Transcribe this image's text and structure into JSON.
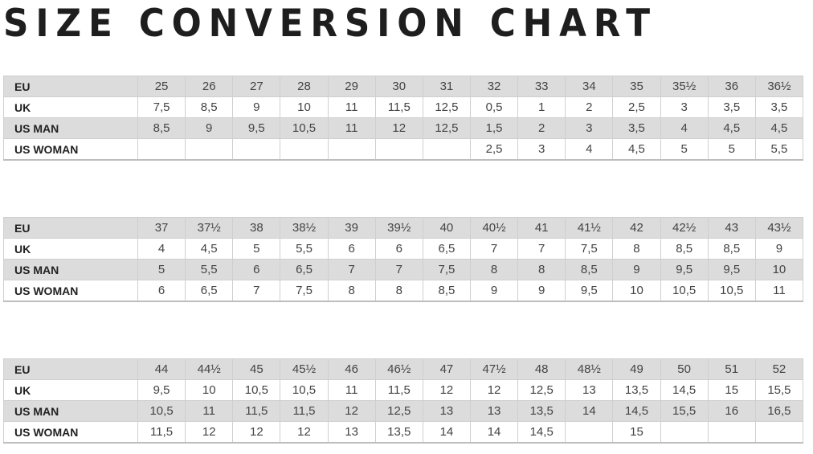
{
  "title": "SIZE CONVERSION CHART",
  "row_labels": [
    "EU",
    "UK",
    "US MAN",
    "US WOMAN"
  ],
  "tables": [
    {
      "EU": [
        "25",
        "26",
        "27",
        "28",
        "29",
        "30",
        "31",
        "32",
        "33",
        "34",
        "35",
        "35½",
        "36",
        "36½"
      ],
      "UK": [
        "7,5",
        "8,5",
        "9",
        "10",
        "11",
        "11,5",
        "12,5",
        "0,5",
        "1",
        "2",
        "2,5",
        "3",
        "3,5",
        "3,5"
      ],
      "US MAN": [
        "8,5",
        "9",
        "9,5",
        "10,5",
        "11",
        "12",
        "12,5",
        "1,5",
        "2",
        "3",
        "3,5",
        "4",
        "4,5",
        "4,5"
      ],
      "US WOMAN": [
        "",
        "",
        "",
        "",
        "",
        "",
        "",
        "2,5",
        "3",
        "4",
        "4,5",
        "5",
        "5",
        "5,5"
      ]
    },
    {
      "EU": [
        "37",
        "37½",
        "38",
        "38½",
        "39",
        "39½",
        "40",
        "40½",
        "41",
        "41½",
        "42",
        "42½",
        "43",
        "43½"
      ],
      "UK": [
        "4",
        "4,5",
        "5",
        "5,5",
        "6",
        "6",
        "6,5",
        "7",
        "7",
        "7,5",
        "8",
        "8,5",
        "8,5",
        "9"
      ],
      "US MAN": [
        "5",
        "5,5",
        "6",
        "6,5",
        "7",
        "7",
        "7,5",
        "8",
        "8",
        "8,5",
        "9",
        "9,5",
        "9,5",
        "10"
      ],
      "US WOMAN": [
        "6",
        "6,5",
        "7",
        "7,5",
        "8",
        "8",
        "8,5",
        "9",
        "9",
        "9,5",
        "10",
        "10,5",
        "10,5",
        "11"
      ]
    },
    {
      "EU": [
        "44",
        "44½",
        "45",
        "45½",
        "46",
        "46½",
        "47",
        "47½",
        "48",
        "48½",
        "49",
        "50",
        "51",
        "52"
      ],
      "UK": [
        "9,5",
        "10",
        "10,5",
        "10,5",
        "11",
        "11,5",
        "12",
        "12",
        "12,5",
        "13",
        "13,5",
        "14,5",
        "15",
        "15,5"
      ],
      "US MAN": [
        "10,5",
        "11",
        "11,5",
        "11,5",
        "12",
        "12,5",
        "13",
        "13",
        "13,5",
        "14",
        "14,5",
        "15,5",
        "16",
        "16,5"
      ],
      "US WOMAN": [
        "11,5",
        "12",
        "12",
        "12",
        "13",
        "13,5",
        "14",
        "14",
        "14,5",
        "",
        "15",
        "",
        "",
        ""
      ]
    }
  ]
}
